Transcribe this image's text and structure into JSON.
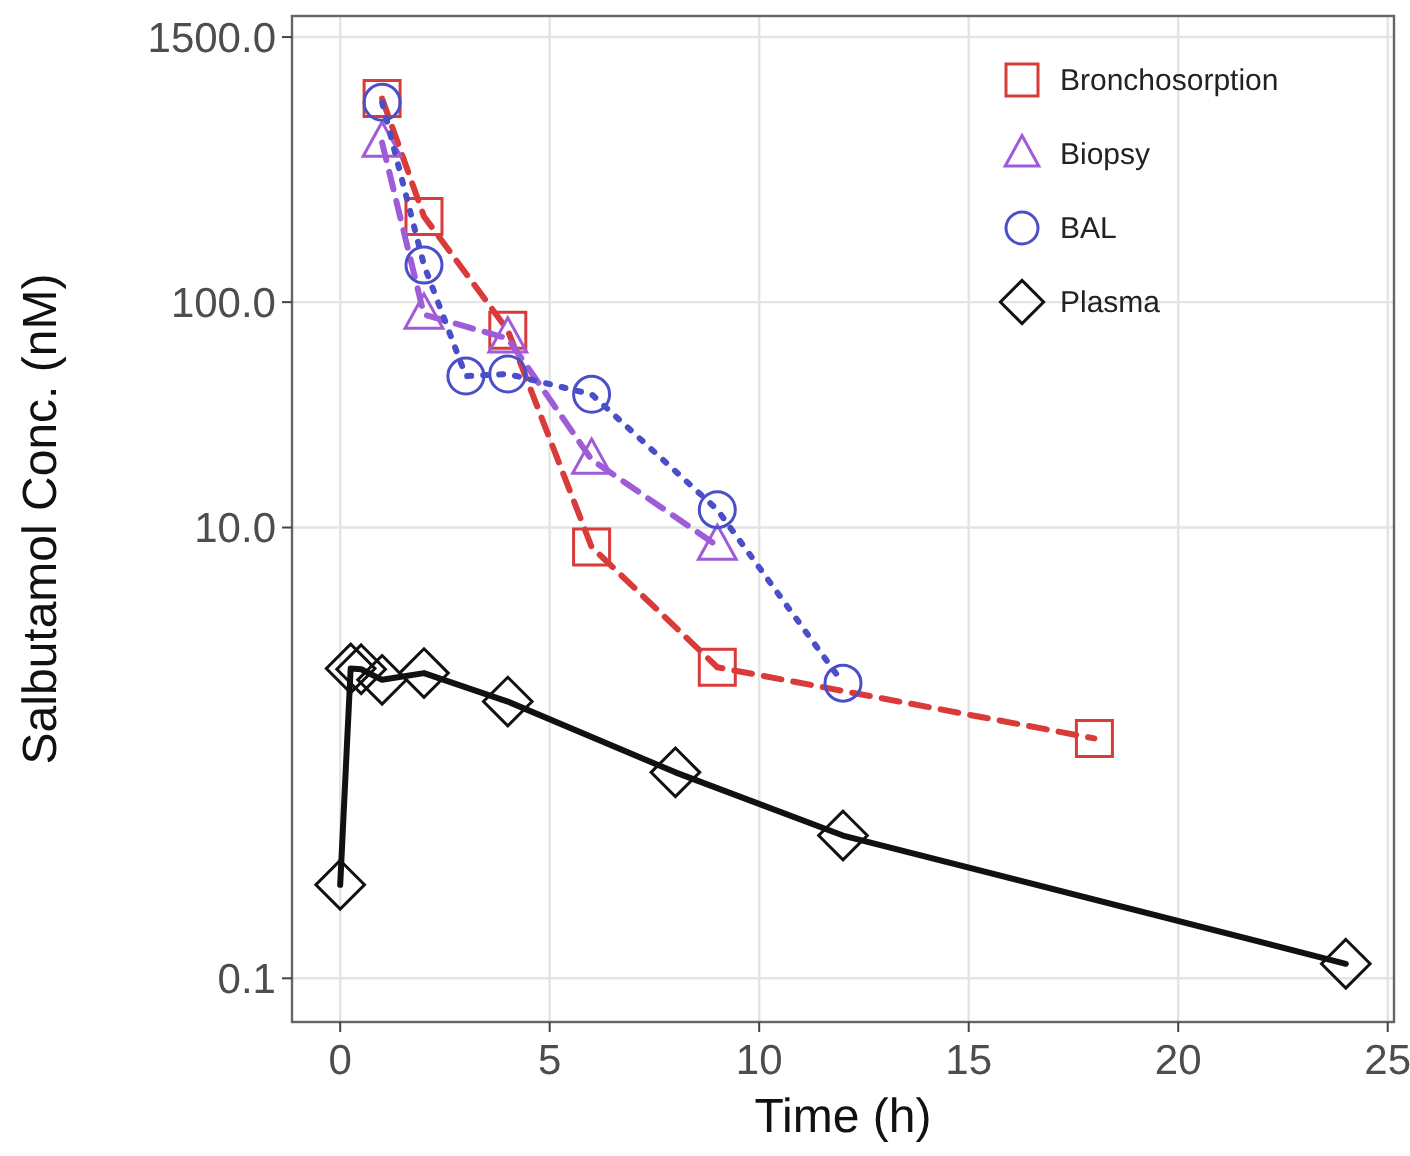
{
  "chart_data": {
    "type": "line",
    "xlabel": "Time (h)",
    "ylabel": "Salbutamol Conc. (nM)",
    "log": "y",
    "grid": true,
    "legend": "top right",
    "xlim": [
      -1.15,
      25.15
    ],
    "xticks": [
      0,
      5,
      10,
      15,
      20,
      25
    ],
    "ylim": [
      0.064,
      1860
    ],
    "yticks": [
      {
        "value": 0.1,
        "label": "0.1"
      },
      {
        "value": 10,
        "label": "10.0"
      },
      {
        "value": 100,
        "label": "100.0"
      },
      {
        "value": 1500,
        "label": "1500.0"
      }
    ],
    "series": [
      {
        "name": "Bronchosorption",
        "color": "#d93a3a",
        "marker": "square",
        "line_style": "dashed",
        "x": [
          1,
          2,
          4,
          6,
          9,
          18
        ],
        "values": [
          800,
          240,
          75,
          8.2,
          2.4,
          1.16
        ]
      },
      {
        "name": "Biopsy",
        "color": "#a05cd8",
        "marker": "triangle",
        "line_style": "dashed",
        "x": [
          1,
          2,
          4,
          6,
          9
        ],
        "values": [
          510,
          88,
          69,
          20,
          8.3
        ]
      },
      {
        "name": "BAL",
        "color": "#4a4fc8",
        "marker": "circle",
        "line_style": "dotted",
        "x": [
          1,
          2,
          3,
          4,
          6,
          9,
          12
        ],
        "values": [
          770,
          146,
          47,
          48,
          39,
          12,
          2.04
        ]
      },
      {
        "name": "Plasma",
        "color": "#111111",
        "marker": "diamond",
        "line_style": "solid",
        "x": [
          0,
          0.25,
          0.5,
          1,
          2,
          4,
          8,
          12,
          24
        ],
        "values": [
          0.26,
          2.37,
          2.35,
          2.11,
          2.26,
          1.69,
          0.82,
          0.43,
          0.116
        ]
      }
    ]
  }
}
